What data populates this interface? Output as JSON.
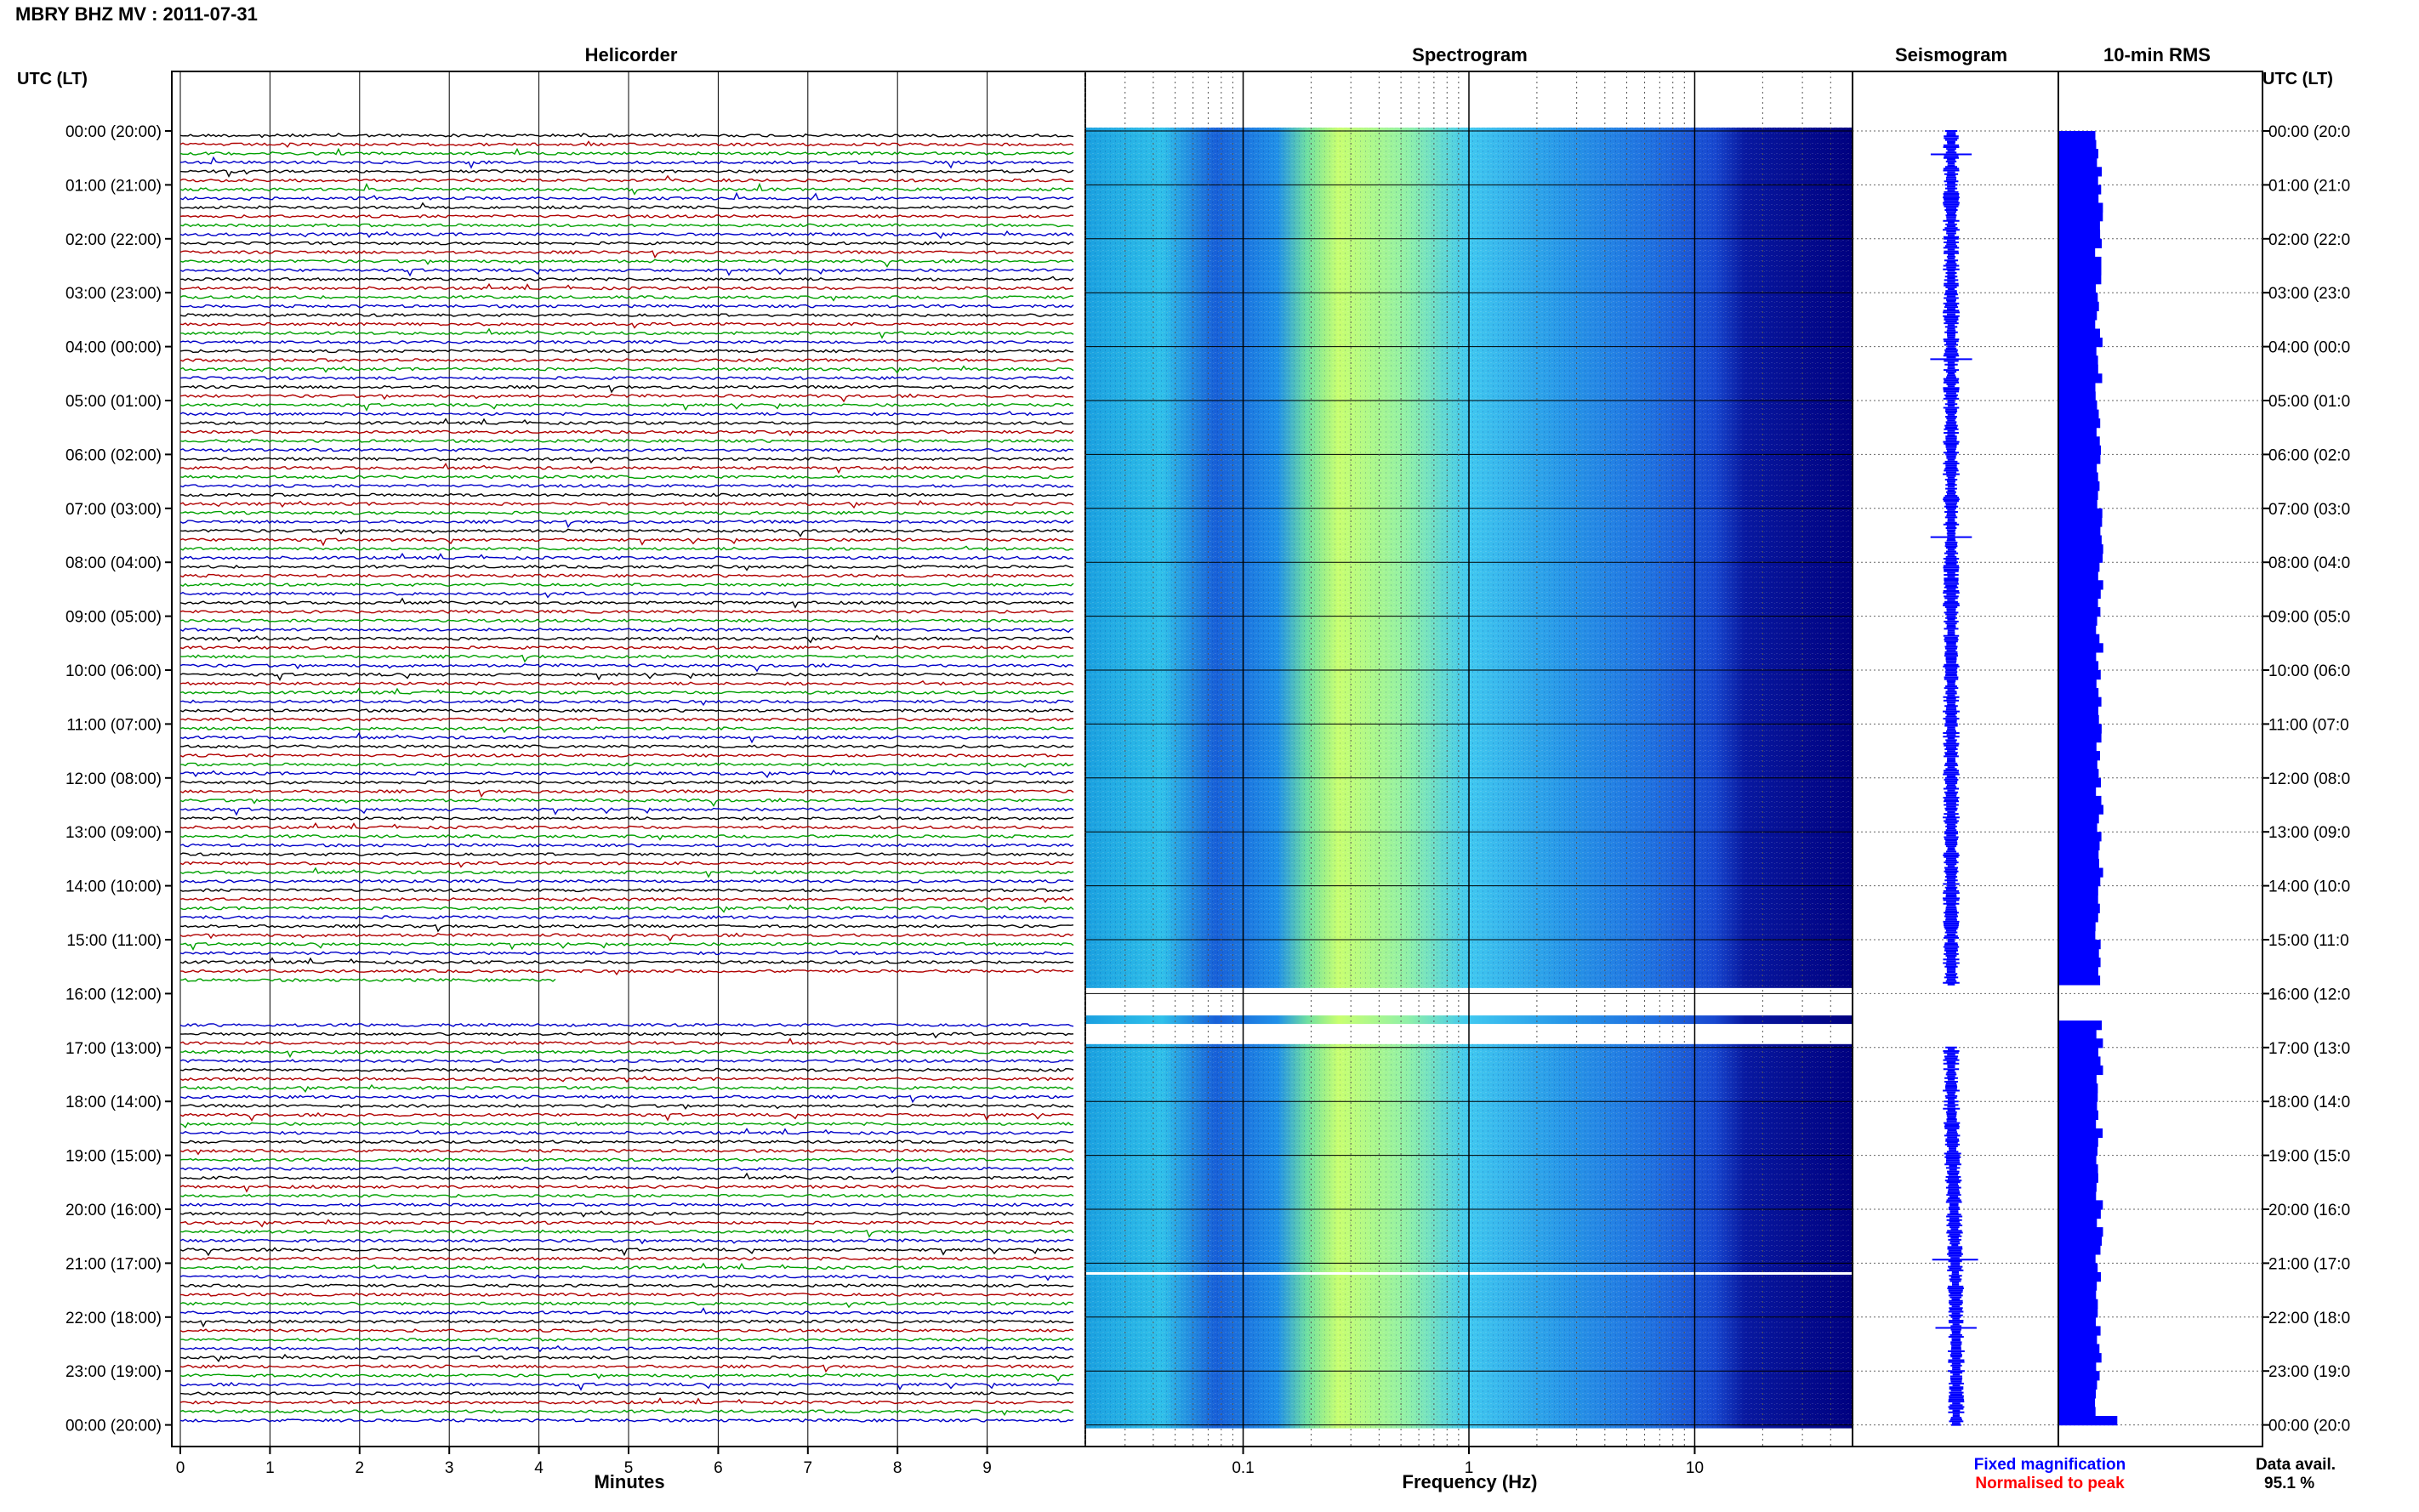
{
  "header": {
    "title": "MBRY BHZ MV : 2011-07-31",
    "utc_left": "UTC (LT)",
    "utc_right": "UTC (LT)"
  },
  "panels": {
    "helicorder": "Helicorder",
    "spectrogram": "Spectrogram",
    "seismogram": "Seismogram",
    "rms": "10-min RMS"
  },
  "footer": {
    "helicorder_xlabel": "Minutes",
    "spectrogram_xlabel": "Frequency (Hz)",
    "legend_fixed": "Fixed magnification",
    "legend_normalised": "Normalised to peak",
    "data_avail_label": "Data avail.",
    "data_avail_value": "95.1 %"
  },
  "colors": {
    "trace_cycle": [
      "#000000",
      "#b00000",
      "#00a000",
      "#0000c8"
    ],
    "legend_fixed": "#0000ff",
    "legend_normalised": "#ff0000",
    "rms_fill": "#0000ff",
    "spectrogram_base": "#000080"
  },
  "chart_data": [
    {
      "type": "line",
      "title": "Helicorder",
      "xlabel": "Minutes",
      "x_ticks": [
        "0",
        "1",
        "2",
        "3",
        "4",
        "5",
        "6",
        "7",
        "8",
        "9"
      ],
      "xlim": [
        0,
        10
      ],
      "row_labels": [
        "00:00 (20:00)",
        "01:00 (21:00)",
        "02:00 (22:00)",
        "03:00 (23:00)",
        "04:00 (00:00)",
        "05:00 (01:00)",
        "06:00 (02:00)",
        "07:00 (03:00)",
        "08:00 (04:00)",
        "09:00 (05:00)",
        "10:00 (06:00)",
        "11:00 (07:00)",
        "12:00 (08:00)",
        "13:00 (09:00)",
        "14:00 (10:00)",
        "15:00 (11:00)",
        "16:00 (12:00)",
        "17:00 (13:00)",
        "18:00 (14:00)",
        "19:00 (15:00)",
        "20:00 (16:00)",
        "21:00 (17:00)",
        "22:00 (18:00)",
        "23:00 (19:00)",
        "00:00 (20:00)"
      ],
      "traces_per_hour": 6,
      "gap_utc": [
        "15:50",
        "16:30"
      ]
    },
    {
      "type": "heatmap",
      "title": "Spectrogram",
      "xlabel": "Frequency (Hz)",
      "x_scale": "log",
      "x_ticks": [
        "0.1",
        "1",
        "10"
      ],
      "xlim": [
        0.02,
        50
      ],
      "gap_utc": [
        "15:50",
        "16:30"
      ]
    },
    {
      "type": "line",
      "title": "Seismogram"
    },
    {
      "type": "bar",
      "title": "10-min RMS"
    }
  ]
}
